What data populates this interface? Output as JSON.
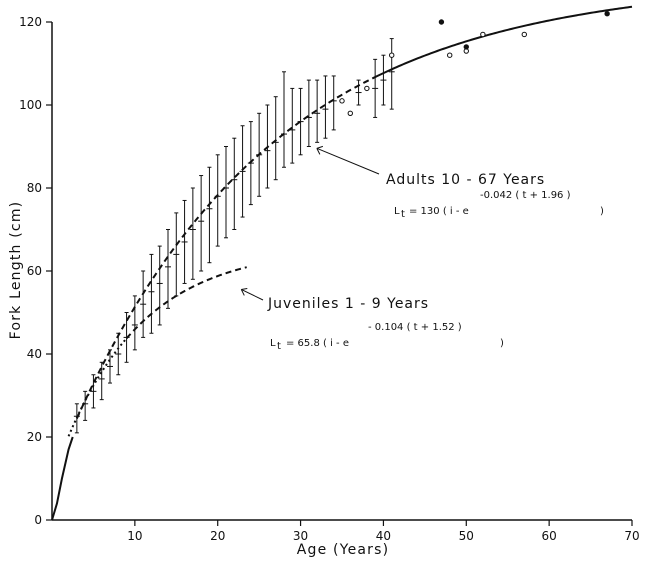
{
  "chart_data": {
    "type": "scatter",
    "title": "",
    "xlabel": "Age (Years)",
    "ylabel": "Fork Length (cm)",
    "xlim": [
      0,
      70
    ],
    "ylim": [
      0,
      120
    ],
    "xticks": [
      10,
      20,
      30,
      40,
      50,
      60,
      70
    ],
    "yticks": [
      0,
      20,
      40,
      60,
      80,
      100,
      120
    ],
    "grid": false,
    "series": [
      {
        "marker": "cross",
        "points": [
          {
            "x": 3,
            "y": 25,
            "low": 21,
            "high": 28
          },
          {
            "x": 4,
            "y": 28,
            "low": 24,
            "high": 31
          },
          {
            "x": 5,
            "y": 31,
            "low": 27,
            "high": 35
          },
          {
            "x": 6,
            "y": 34,
            "low": 29,
            "high": 38
          },
          {
            "x": 7,
            "y": 37,
            "low": 33,
            "high": 41
          },
          {
            "x": 8,
            "y": 40,
            "low": 35,
            "high": 45
          },
          {
            "x": 9,
            "y": 44,
            "low": 38,
            "high": 50
          },
          {
            "x": 10,
            "y": 47,
            "low": 41,
            "high": 54
          },
          {
            "x": 11,
            "y": 52,
            "low": 44,
            "high": 60
          },
          {
            "x": 12,
            "y": 55,
            "low": 45,
            "high": 64
          },
          {
            "x": 13,
            "y": 57,
            "low": 47,
            "high": 66
          },
          {
            "x": 14,
            "y": 61,
            "low": 51,
            "high": 70
          },
          {
            "x": 15,
            "y": 64,
            "low": 54,
            "high": 74
          },
          {
            "x": 16,
            "y": 67,
            "low": 57,
            "high": 77
          },
          {
            "x": 17,
            "y": 70,
            "low": 58,
            "high": 80
          },
          {
            "x": 18,
            "y": 72,
            "low": 60,
            "high": 83
          },
          {
            "x": 19,
            "y": 75,
            "low": 62,
            "high": 85
          },
          {
            "x": 20,
            "y": 78,
            "low": 66,
            "high": 88
          },
          {
            "x": 21,
            "y": 80,
            "low": 68,
            "high": 90
          },
          {
            "x": 22,
            "y": 82,
            "low": 70,
            "high": 92
          },
          {
            "x": 23,
            "y": 84,
            "low": 73,
            "high": 95
          },
          {
            "x": 24,
            "y": 86,
            "low": 76,
            "high": 96
          },
          {
            "x": 25,
            "y": 88,
            "low": 78,
            "high": 98
          },
          {
            "x": 26,
            "y": 89,
            "low": 80,
            "high": 100
          },
          {
            "x": 27,
            "y": 91,
            "low": 82,
            "high": 102
          },
          {
            "x": 28,
            "y": 93,
            "low": 85,
            "high": 108
          },
          {
            "x": 29,
            "y": 94,
            "low": 86,
            "high": 104
          },
          {
            "x": 30,
            "y": 96,
            "low": 88,
            "high": 104
          },
          {
            "x": 31,
            "y": 97,
            "low": 90,
            "high": 106
          },
          {
            "x": 32,
            "y": 98,
            "low": 91,
            "high": 106
          },
          {
            "x": 33,
            "y": 99,
            "low": 92,
            "high": 107
          },
          {
            "x": 34,
            "y": 101,
            "low": 94,
            "high": 107
          },
          {
            "x": 37,
            "y": 103,
            "low": 100,
            "high": 106
          },
          {
            "x": 39,
            "y": 104,
            "low": 97,
            "high": 111
          },
          {
            "x": 40,
            "y": 106,
            "low": 100,
            "high": 112
          },
          {
            "x": 41,
            "y": 108,
            "low": 99,
            "high": 116
          }
        ]
      },
      {
        "marker": "open-circle",
        "points": [
          {
            "x": 35,
            "y": 101
          },
          {
            "x": 36,
            "y": 98
          },
          {
            "x": 38,
            "y": 104
          },
          {
            "x": 41,
            "y": 112
          },
          {
            "x": 48,
            "y": 112
          },
          {
            "x": 50,
            "y": 113
          },
          {
            "x": 52,
            "y": 117
          },
          {
            "x": 57,
            "y": 117
          }
        ]
      },
      {
        "marker": "filled-circle",
        "points": [
          {
            "x": 47,
            "y": 120
          },
          {
            "x": 50,
            "y": 114
          },
          {
            "x": 67,
            "y": 122
          }
        ]
      }
    ],
    "curves": [
      {
        "name": "adults",
        "style": "solid",
        "model": "von_bertalanffy",
        "Linf": 130,
        "k": 0.042,
        "t0": -1.96,
        "x_range": [
          39,
          70
        ]
      },
      {
        "name": "adults_dashed",
        "style": "dashed",
        "model": "von_bertalanffy",
        "Linf": 130,
        "k": 0.042,
        "t0": -1.96,
        "x_range": [
          3,
          39
        ]
      },
      {
        "name": "juveniles",
        "style": "dashed",
        "model": "von_bertalanffy",
        "Linf": 65.8,
        "k": 0.104,
        "t0": -1.52,
        "x_range": [
          9,
          23.5
        ]
      },
      {
        "name": "juveniles_dotted",
        "style": "dotted",
        "model": "von_bertalanffy",
        "Linf": 65.8,
        "k": 0.104,
        "t0": -1.52,
        "x_range": [
          2,
          9
        ]
      },
      {
        "name": "young",
        "style": "solid",
        "points": [
          {
            "x": 0,
            "y": 0
          },
          {
            "x": 0.6,
            "y": 4
          },
          {
            "x": 1.2,
            "y": 10
          },
          {
            "x": 2.0,
            "y": 17
          },
          {
            "x": 2.5,
            "y": 20
          }
        ]
      }
    ],
    "annotations": [
      {
        "title": "Adults  10 - 67  Years",
        "equation_main": "L",
        "equation_sub": "t",
        "equation_rest": "= 130  ( i - e",
        "equation_sup": "-0.042  ( t + 1.96 )",
        "equation_close": ")",
        "arrow_to": {
          "x": 31,
          "y": 91
        }
      },
      {
        "title": "Juveniles  1 - 9  Years",
        "equation_main": "L",
        "equation_sub": "t",
        "equation_rest": "= 65.8  ( i - e",
        "equation_sup": "- 0.104  ( t + 1.52 )",
        "equation_close": ")",
        "arrow_to": {
          "x": 22,
          "y": 57
        }
      }
    ]
  }
}
